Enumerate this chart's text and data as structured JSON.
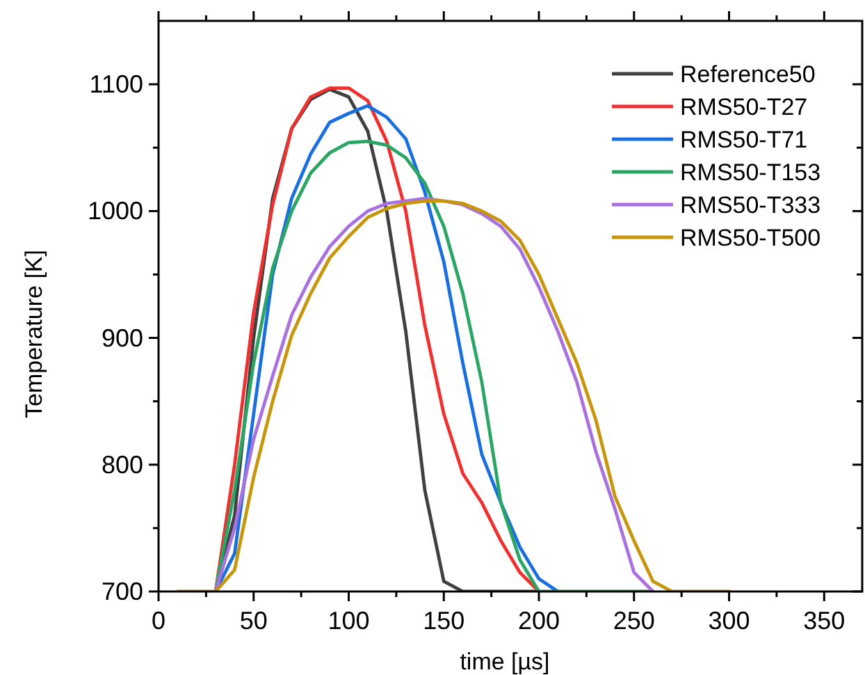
{
  "chart_data": {
    "type": "line",
    "xlabel": "time [µs]",
    "ylabel": "Temperature [K]",
    "x": [
      10,
      20,
      30,
      40,
      50,
      60,
      70,
      80,
      90,
      100,
      110,
      120,
      130,
      140,
      150,
      160,
      170,
      180,
      190,
      200,
      210,
      220,
      230,
      240,
      250,
      260,
      270,
      280,
      290,
      300
    ],
    "xlim": [
      0,
      370
    ],
    "ylim": [
      700,
      1150
    ],
    "xticks": [
      0,
      {
        "value": 25,
        "label": null
      },
      50,
      {
        "value": 75,
        "label": null
      },
      100,
      {
        "value": 125,
        "label": null
      },
      150,
      {
        "value": 175,
        "label": null
      },
      200,
      {
        "value": 225,
        "label": null
      },
      250,
      {
        "value": 275,
        "label": null
      },
      300,
      {
        "value": 325,
        "label": null
      },
      350
    ],
    "yticks": [
      700,
      {
        "value": 750,
        "label": null
      },
      800,
      {
        "value": 850,
        "label": null
      },
      900,
      {
        "value": 950,
        "label": null
      },
      1000,
      {
        "value": 1050,
        "label": null
      },
      1100
    ],
    "legend": "top right",
    "grid": false,
    "marker": "none",
    "line_style": "solid",
    "series": [
      {
        "name": "Reference50",
        "color": "#404040",
        "values": [
          null,
          null,
          700,
          760,
          900,
          1010,
          1065,
          1088,
          1096,
          1090,
          1063,
          1000,
          905,
          780,
          708,
          700,
          700,
          700,
          700,
          700,
          null,
          null,
          null,
          null,
          null,
          null,
          null,
          null,
          null,
          null
        ]
      },
      {
        "name": "RMS50-T27",
        "color": "#f0302e",
        "values": [
          null,
          null,
          700,
          800,
          920,
          1005,
          1065,
          1090,
          1097,
          1097,
          1087,
          1055,
          1000,
          910,
          840,
          793,
          770,
          740,
          715,
          700,
          null,
          null,
          null,
          null,
          null,
          null,
          null,
          null,
          null,
          null
        ]
      },
      {
        "name": "RMS50-T71",
        "color": "#1a6fe0",
        "values": [
          null,
          null,
          700,
          730,
          840,
          950,
          1010,
          1045,
          1070,
          1077,
          1083,
          1074,
          1057,
          1015,
          960,
          880,
          808,
          770,
          735,
          710,
          700,
          null,
          null,
          null,
          null,
          null,
          null,
          null,
          null,
          null
        ]
      },
      {
        "name": "RMS50-T153",
        "color": "#2aa664",
        "values": [
          null,
          null,
          700,
          780,
          880,
          955,
          1000,
          1030,
          1046,
          1054,
          1055,
          1052,
          1042,
          1022,
          988,
          935,
          865,
          770,
          725,
          700,
          700,
          700,
          700,
          700,
          700,
          700,
          null,
          null,
          null,
          null
        ]
      },
      {
        "name": "RMS50-T333",
        "color": "#a970e0",
        "values": [
          null,
          null,
          700,
          750,
          820,
          870,
          918,
          948,
          972,
          988,
          1000,
          1006,
          1008,
          1010,
          1008,
          1005,
          998,
          988,
          970,
          940,
          905,
          865,
          810,
          765,
          715,
          700,
          null,
          null,
          null,
          null
        ]
      },
      {
        "name": "RMS50-T500",
        "color": "#c8960a",
        "values": [
          700,
          700,
          700,
          717,
          790,
          850,
          902,
          935,
          963,
          980,
          995,
          1002,
          1006,
          1008,
          1008,
          1006,
          1000,
          992,
          977,
          950,
          915,
          880,
          835,
          775,
          740,
          708,
          700,
          700,
          700,
          700
        ]
      }
    ]
  }
}
